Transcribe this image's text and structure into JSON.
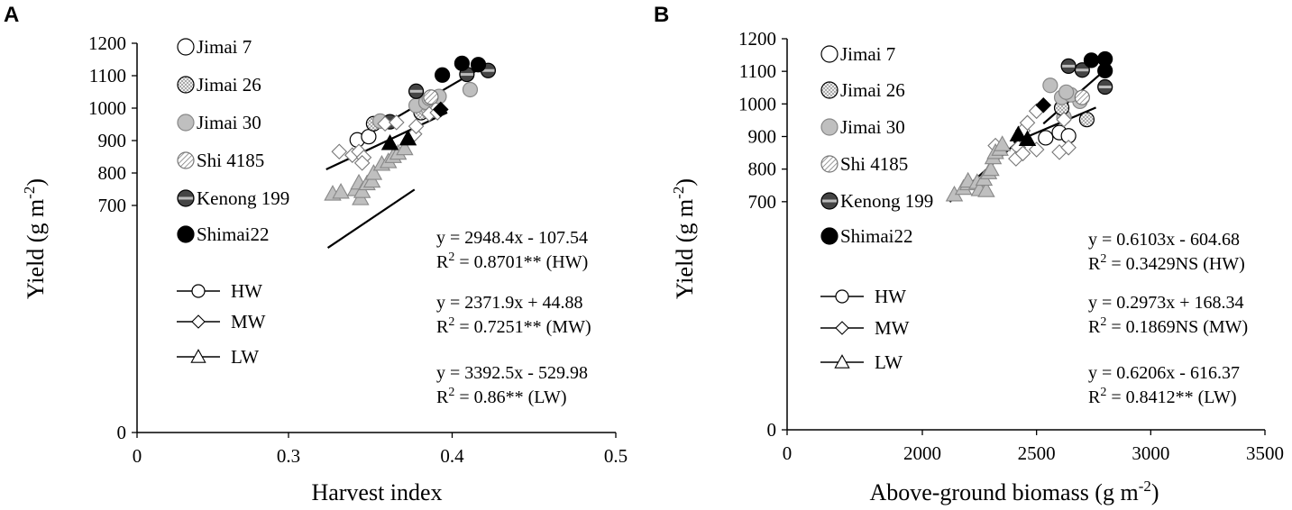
{
  "chart_data": [
    {
      "panel": "A",
      "type": "scatter",
      "xlabel": "Harvest index",
      "ylabel": "Yield (g m",
      "ylabel_sup": "-2",
      "ylabel_end": ")",
      "xlim": [
        0,
        0.5
      ],
      "ylim": [
        0,
        1200
      ],
      "xticks": [
        0,
        0.3,
        0.4,
        0.5
      ],
      "xtick_labels": [
        "0",
        "0.3",
        "0.4",
        "0.5"
      ],
      "ytick_labels": [
        "0",
        "700",
        "800",
        "900",
        "1000",
        "1100",
        "1200"
      ],
      "cultivars": [
        "Jimai 7",
        "Jimai 26",
        "Jimai 30",
        "Shi 4185",
        "Kenong 199",
        "Shimai22"
      ],
      "treatments": [
        "HW",
        "MW",
        "LW"
      ],
      "series": [
        {
          "name": "HW",
          "marker": "circle",
          "points": [
            {
              "x": 0.342,
              "y": 902,
              "c": "Jimai 7"
            },
            {
              "x": 0.349,
              "y": 912,
              "c": "Jimai 7"
            },
            {
              "x": 0.352,
              "y": 952,
              "c": "Jimai 26"
            },
            {
              "x": 0.356,
              "y": 960,
              "c": "Jimai 30"
            },
            {
              "x": 0.362,
              "y": 958,
              "c": "Kenong 199"
            },
            {
              "x": 0.381,
              "y": 986,
              "c": "Jimai 26"
            },
            {
              "x": 0.378,
              "y": 1008,
              "c": "Jimai 30"
            },
            {
              "x": 0.384,
              "y": 1018,
              "c": "Jimai 30"
            },
            {
              "x": 0.386,
              "y": 1030,
              "c": "Jimai 30"
            },
            {
              "x": 0.392,
              "y": 1036,
              "c": "Jimai 30"
            },
            {
              "x": 0.387,
              "y": 1034,
              "c": "Shi 4185"
            },
            {
              "x": 0.378,
              "y": 1052,
              "c": "Kenong 199"
            },
            {
              "x": 0.411,
              "y": 1057,
              "c": "Jimai 30"
            },
            {
              "x": 0.394,
              "y": 1102,
              "c": "Shimai22"
            },
            {
              "x": 0.409,
              "y": 1104,
              "c": "Kenong 199"
            },
            {
              "x": 0.422,
              "y": 1116,
              "c": "Kenong 199"
            },
            {
              "x": 0.416,
              "y": 1134,
              "c": "Shimai22"
            },
            {
              "x": 0.406,
              "y": 1138,
              "c": "Shimai22"
            }
          ]
        },
        {
          "name": "MW",
          "marker": "diamond",
          "points": [
            {
              "x": 0.331,
              "y": 866
            },
            {
              "x": 0.339,
              "y": 855
            },
            {
              "x": 0.343,
              "y": 866
            },
            {
              "x": 0.346,
              "y": 848
            },
            {
              "x": 0.345,
              "y": 831
            },
            {
              "x": 0.359,
              "y": 952
            },
            {
              "x": 0.366,
              "y": 956
            },
            {
              "x": 0.377,
              "y": 920
            },
            {
              "x": 0.378,
              "y": 944
            },
            {
              "x": 0.386,
              "y": 982
            },
            {
              "x": 0.391,
              "y": 986
            },
            {
              "x": 0.393,
              "y": 996,
              "c": "Shimai22"
            }
          ]
        },
        {
          "name": "LW",
          "marker": "triangle",
          "points": [
            {
              "x": 0.327,
              "y": 736
            },
            {
              "x": 0.332,
              "y": 742
            },
            {
              "x": 0.341,
              "y": 750
            },
            {
              "x": 0.343,
              "y": 770
            },
            {
              "x": 0.344,
              "y": 722
            },
            {
              "x": 0.345,
              "y": 744
            },
            {
              "x": 0.348,
              "y": 768
            },
            {
              "x": 0.351,
              "y": 776
            },
            {
              "x": 0.352,
              "y": 800
            },
            {
              "x": 0.357,
              "y": 828
            },
            {
              "x": 0.361,
              "y": 836
            },
            {
              "x": 0.364,
              "y": 852
            },
            {
              "x": 0.367,
              "y": 862
            },
            {
              "x": 0.371,
              "y": 876
            },
            {
              "x": 0.362,
              "y": 892,
              "c": "Shimai22"
            },
            {
              "x": 0.373,
              "y": 906,
              "c": "Shimai22"
            }
          ]
        }
      ],
      "fits": [
        {
          "name": "HW",
          "slope": 2948.4,
          "intercept": -107.54,
          "x_range": [
            0.341,
            0.421
          ]
        },
        {
          "name": "MW",
          "slope": 2371.9,
          "intercept": 44.88,
          "x_range": [
            0.323,
            0.397
          ]
        },
        {
          "name": "LW",
          "slope": 3392.5,
          "intercept": -529.98,
          "x_range": [
            0.324,
            0.377
          ]
        }
      ],
      "equations": [
        {
          "eq": "y = 2948.4x - 107.54",
          "r2_pre": "R",
          "r2_sup": "2",
          "r2_post": " = 0.8701** (HW)"
        },
        {
          "eq": "y = 2371.9x + 44.88",
          "r2_pre": "R",
          "r2_sup": "2",
          "r2_post": " = 0.7251** (MW)"
        },
        {
          "eq": "y = 3392.5x - 529.98",
          "r2_pre": "R",
          "r2_sup": "2",
          "r2_post": " = 0.86** (LW)"
        }
      ]
    },
    {
      "panel": "B",
      "type": "scatter",
      "xlabel": "Above-ground biomass (g m",
      "xlabel_sup": "-2",
      "xlabel_end": ")",
      "ylabel": "Yield (g m",
      "ylabel_sup": "-2",
      "ylabel_end": ")",
      "xlim": [
        0,
        3500
      ],
      "ylim": [
        0,
        1200
      ],
      "xticks": [
        0,
        2000,
        2500,
        3000,
        3500
      ],
      "xtick_labels": [
        "0",
        "2000",
        "2500",
        "3000",
        "3500"
      ],
      "ytick_labels": [
        "0",
        "700",
        "800",
        "900",
        "1000",
        "1100",
        "1200"
      ],
      "cultivars": [
        "Jimai 7",
        "Jimai 26",
        "Jimai 30",
        "Shi 4185",
        "Kenong 199",
        "Shimai22"
      ],
      "treatments": [
        "HW",
        "MW",
        "LW"
      ],
      "series": [
        {
          "name": "HW",
          "marker": "circle",
          "points": [
            {
              "x": 2540,
              "y": 896,
              "c": "Jimai 7"
            },
            {
              "x": 2600,
              "y": 912,
              "c": "Jimai 7"
            },
            {
              "x": 2640,
              "y": 902,
              "c": "Jimai 7"
            },
            {
              "x": 2720,
              "y": 952,
              "c": "Jimai 26"
            },
            {
              "x": 2620,
              "y": 960,
              "c": "Jimai 30"
            },
            {
              "x": 2610,
              "y": 988,
              "c": "Jimai 26"
            },
            {
              "x": 2690,
              "y": 1008,
              "c": "Jimai 30"
            },
            {
              "x": 2610,
              "y": 1020,
              "c": "Jimai 30"
            },
            {
              "x": 2650,
              "y": 1028,
              "c": "Jimai 30"
            },
            {
              "x": 2630,
              "y": 1036,
              "c": "Jimai 30"
            },
            {
              "x": 2700,
              "y": 1020,
              "c": "Shi 4185"
            },
            {
              "x": 2560,
              "y": 1057,
              "c": "Jimai 30"
            },
            {
              "x": 2800,
              "y": 1052,
              "c": "Kenong 199"
            },
            {
              "x": 2800,
              "y": 1102,
              "c": "Shimai22"
            },
            {
              "x": 2700,
              "y": 1104,
              "c": "Kenong 199"
            },
            {
              "x": 2640,
              "y": 1116,
              "c": "Kenong 199"
            },
            {
              "x": 2740,
              "y": 1134,
              "c": "Shimai22"
            },
            {
              "x": 2800,
              "y": 1138,
              "c": "Shimai22"
            }
          ]
        },
        {
          "name": "MW",
          "marker": "diamond",
          "points": [
            {
              "x": 2440,
              "y": 918
            },
            {
              "x": 2460,
              "y": 942
            },
            {
              "x": 2500,
              "y": 978
            },
            {
              "x": 2620,
              "y": 952
            },
            {
              "x": 2420,
              "y": 866
            },
            {
              "x": 2500,
              "y": 860
            },
            {
              "x": 2410,
              "y": 832
            },
            {
              "x": 2440,
              "y": 848
            },
            {
              "x": 2600,
              "y": 852
            },
            {
              "x": 2640,
              "y": 866
            },
            {
              "x": 2320,
              "y": 872
            },
            {
              "x": 2530,
              "y": 996,
              "c": "Shimai22"
            }
          ]
        },
        {
          "name": "LW",
          "marker": "triangle",
          "points": [
            {
              "x": 2140,
              "y": 722
            },
            {
              "x": 2180,
              "y": 742
            },
            {
              "x": 2200,
              "y": 756
            },
            {
              "x": 2200,
              "y": 764
            },
            {
              "x": 2240,
              "y": 760
            },
            {
              "x": 2250,
              "y": 738
            },
            {
              "x": 2280,
              "y": 735
            },
            {
              "x": 2270,
              "y": 770
            },
            {
              "x": 2290,
              "y": 790
            },
            {
              "x": 2300,
              "y": 800
            },
            {
              "x": 2310,
              "y": 836
            },
            {
              "x": 2320,
              "y": 852
            },
            {
              "x": 2340,
              "y": 862
            },
            {
              "x": 2350,
              "y": 876
            },
            {
              "x": 2420,
              "y": 906,
              "c": "Shimai22"
            },
            {
              "x": 2460,
              "y": 892,
              "c": "Shimai22"
            }
          ]
        }
      ],
      "fits": [
        {
          "name": "HW",
          "slope": 0.6103,
          "intercept": -604.68,
          "x_range": [
            2530,
            2800
          ]
        },
        {
          "name": "MW",
          "slope": 0.2973,
          "intercept": 168.34,
          "x_range": [
            2400,
            2760
          ]
        },
        {
          "name": "LW",
          "slope": 0.6206,
          "intercept": -616.37,
          "x_range": [
            2120,
            2450
          ]
        }
      ],
      "equations": [
        {
          "eq": "y = 0.6103x - 604.68",
          "r2_pre": "R",
          "r2_sup": "2",
          "r2_post": " = 0.3429NS (HW)"
        },
        {
          "eq": "y = 0.2973x + 168.34",
          "r2_pre": "R",
          "r2_sup": "2",
          "r2_post": " = 0.1869NS (MW)"
        },
        {
          "eq": "y = 0.6206x - 616.37",
          "r2_pre": "R",
          "r2_sup": "2",
          "r2_post": " = 0.8412** (LW)"
        }
      ]
    }
  ],
  "colors": {
    "black": "#000000",
    "gray": "#bfbfbf",
    "white": "#ffffff",
    "dark": "#333333"
  }
}
